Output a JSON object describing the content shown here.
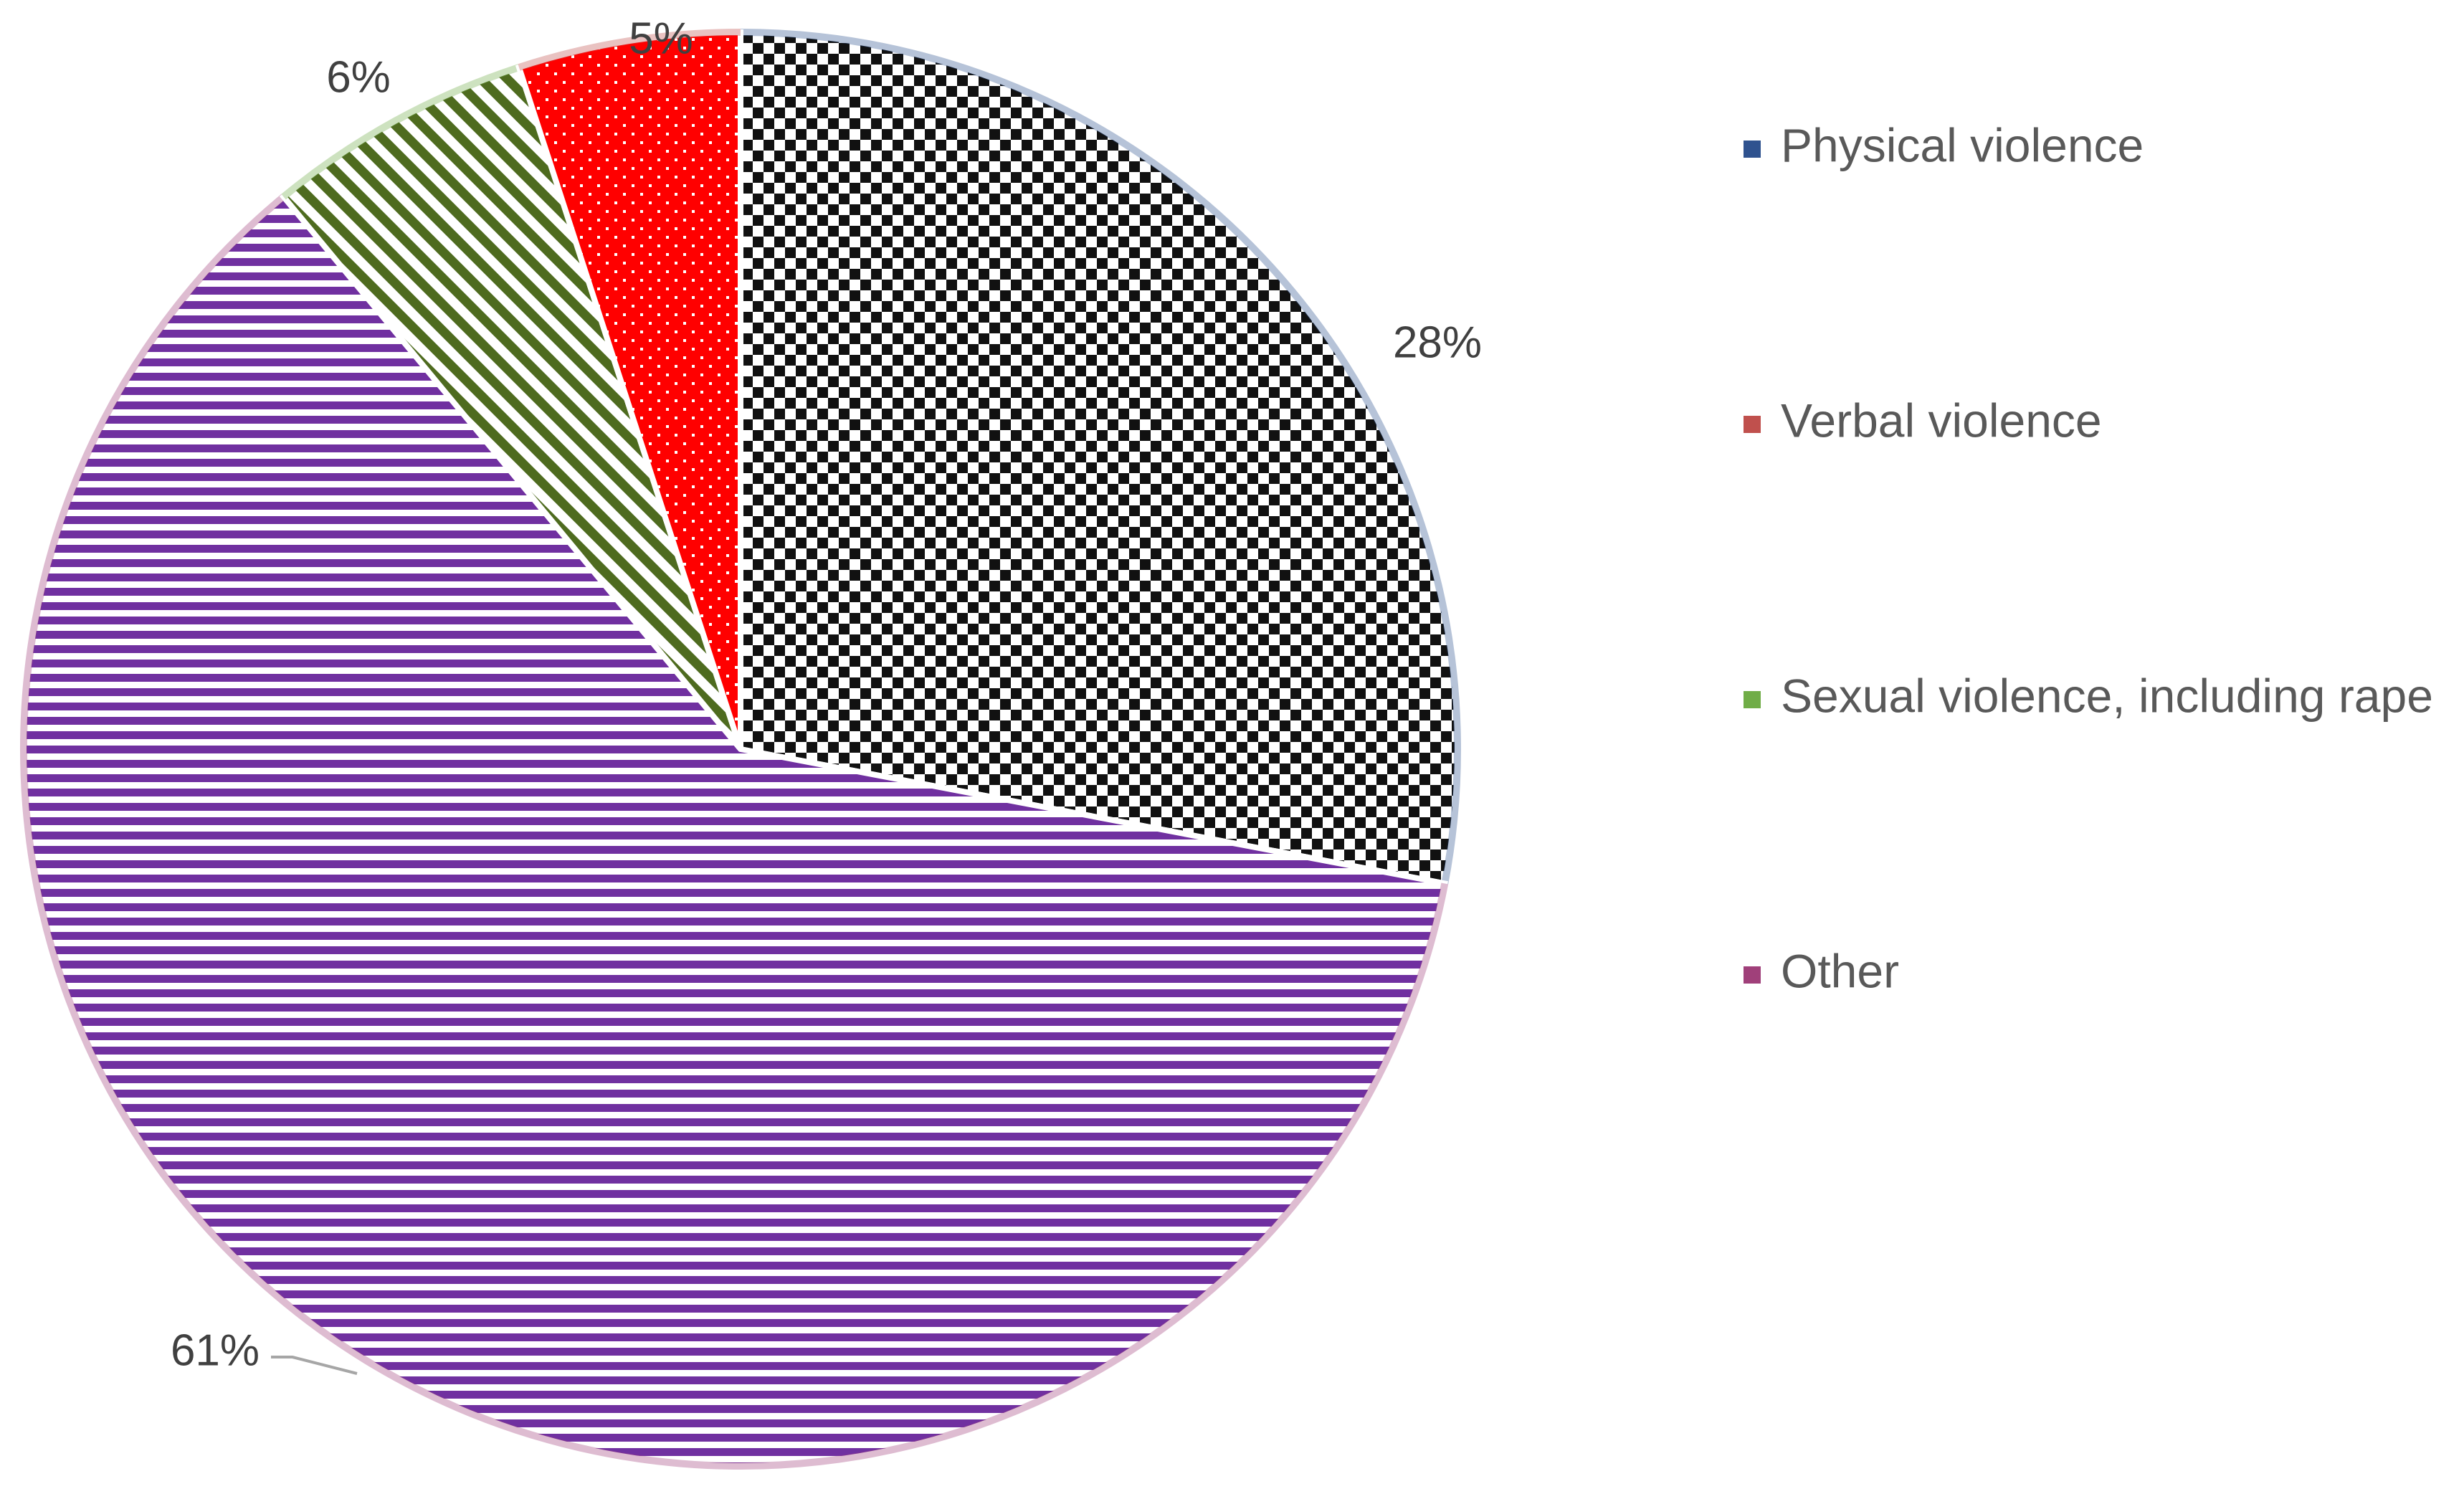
{
  "chart_data": {
    "type": "pie",
    "title": "",
    "slices": [
      {
        "label": "Physical violence",
        "value": 28,
        "display": "28%",
        "color": "#1f1f2e",
        "legend_color": "#2f528f",
        "pattern": "checker"
      },
      {
        "label": "Other",
        "value": 61,
        "display": "61%",
        "color": "#7030a0",
        "legend_color": "#a0407a",
        "pattern": "horizontal-stripes"
      },
      {
        "label": "Sexual violence, including rape",
        "value": 6,
        "display": "6%",
        "color": "#4e6b1f",
        "legend_color": "#70ad47",
        "pattern": "diagonal-stripes"
      },
      {
        "label": "Verbal violence",
        "value": 5,
        "display": "5%",
        "color": "#ff0000",
        "legend_color": "#c0504d",
        "pattern": "dots"
      }
    ],
    "legend": {
      "position": "right",
      "entries": [
        {
          "label": "Physical violence",
          "color": "#2f528f"
        },
        {
          "label": "Verbal violence",
          "color": "#c0504d"
        },
        {
          "label": "Sexual violence, including rape",
          "color": "#70ad47"
        },
        {
          "label": "Other",
          "color": "#a0407a"
        }
      ]
    }
  }
}
